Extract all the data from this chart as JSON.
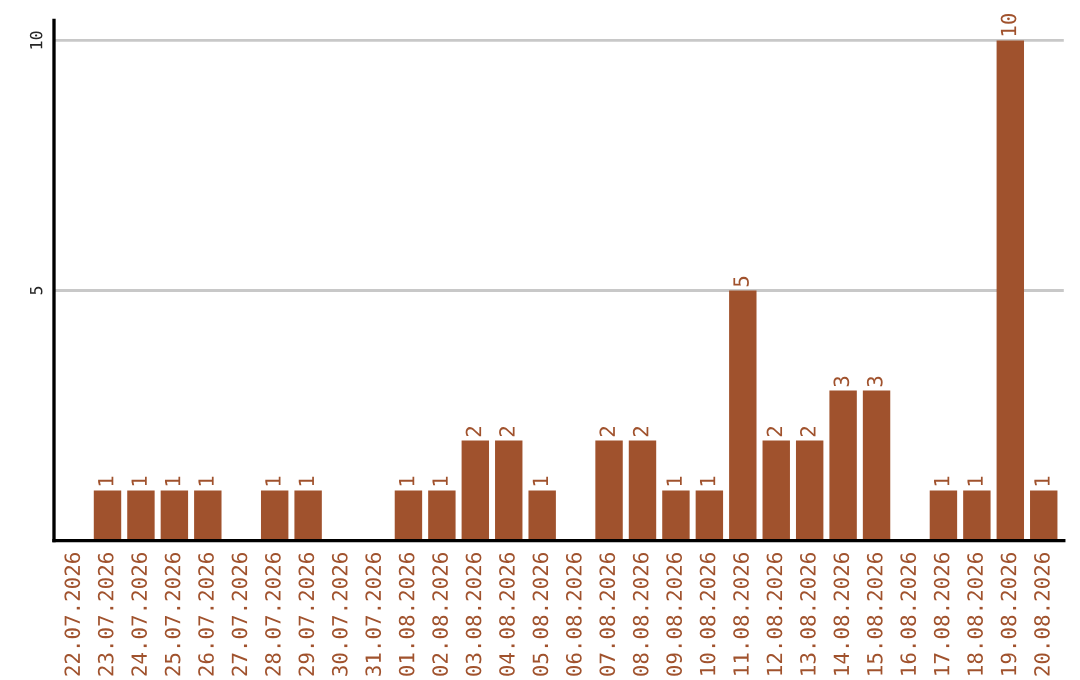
{
  "chart_data": {
    "type": "bar",
    "categories": [
      "22.07.2026",
      "23.07.2026",
      "24.07.2026",
      "25.07.2026",
      "26.07.2026",
      "27.07.2026",
      "28.07.2026",
      "29.07.2026",
      "30.07.2026",
      "31.07.2026",
      "01.08.2026",
      "02.08.2026",
      "03.08.2026",
      "04.08.2026",
      "05.08.2026",
      "06.08.2026",
      "07.08.2026",
      "08.08.2026",
      "09.08.2026",
      "10.08.2026",
      "11.08.2026",
      "12.08.2026",
      "13.08.2026",
      "14.08.2026",
      "15.08.2026",
      "16.08.2026",
      "17.08.2026",
      "18.08.2026",
      "19.08.2026",
      "20.08.2026"
    ],
    "values": [
      0,
      1,
      1,
      1,
      1,
      0,
      1,
      1,
      0,
      0,
      1,
      1,
      2,
      2,
      1,
      0,
      2,
      2,
      1,
      1,
      5,
      2,
      2,
      3,
      3,
      0,
      1,
      1,
      10,
      1
    ],
    "value_labels": [
      null,
      "1",
      "1",
      "1",
      "1",
      null,
      "1",
      "1",
      null,
      null,
      "1",
      "1",
      "2",
      "2",
      "1",
      null,
      "2",
      "2",
      "1",
      "1",
      "5",
      "2",
      "2",
      "3",
      "3",
      null,
      "1",
      "1",
      "10",
      "1"
    ],
    "color": "#a0522d",
    "ylim": [
      0,
      10.4
    ],
    "yticks": [
      {
        "value": 0,
        "label": null
      },
      5,
      10
    ],
    "grid": "y"
  }
}
